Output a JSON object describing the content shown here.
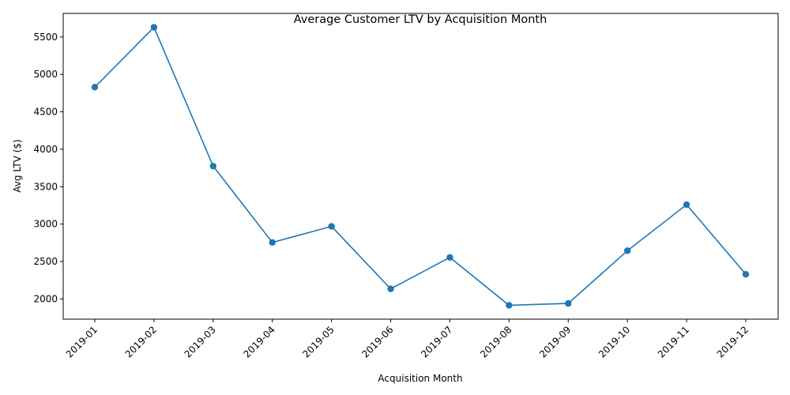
{
  "chart_data": {
    "type": "line",
    "title": "Average Customer LTV by Acquisition Month",
    "xlabel": "Acquisition Month",
    "ylabel": "Avg LTV ($)",
    "categories": [
      "2019-01",
      "2019-02",
      "2019-03",
      "2019-04",
      "2019-05",
      "2019-06",
      "2019-07",
      "2019-08",
      "2019-09",
      "2019-10",
      "2019-11",
      "2019-12"
    ],
    "series": [
      {
        "values": [
          4830,
          5630,
          3775,
          2755,
          2970,
          2135,
          2555,
          1915,
          1940,
          2645,
          3260,
          2330
        ]
      }
    ],
    "yticks": [
      2000,
      2500,
      3000,
      3500,
      4000,
      4500,
      5000,
      5500
    ],
    "ylim": [
      1730,
      5815
    ],
    "grid": false,
    "legend": "none",
    "markers": true,
    "colors": {
      "line": "#1f77b4",
      "axis": "#000000"
    }
  }
}
